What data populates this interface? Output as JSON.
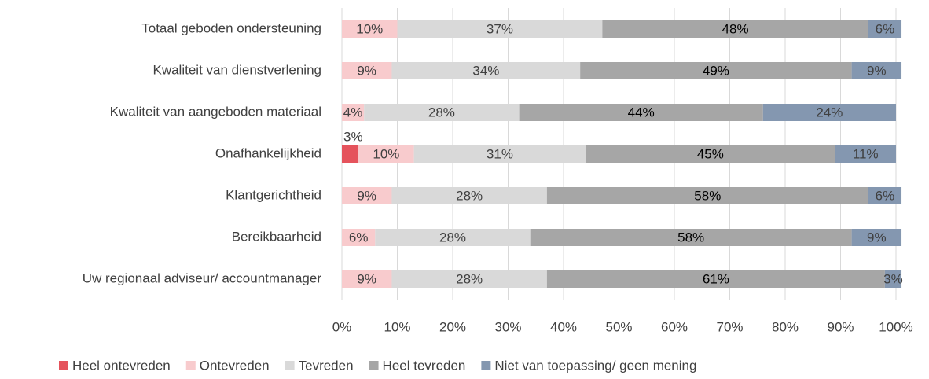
{
  "chart_data": {
    "type": "stacked_bar_horizontal",
    "categories": [
      "Totaal geboden ondersteuning",
      "Kwaliteit van dienstverlening",
      "Kwaliteit van aangeboden materiaal",
      "Onafhankelijkheid",
      "Klantgerichtheid",
      "Bereikbaarheid",
      "Uw regionaal adviseur/ accountmanager"
    ],
    "series": [
      {
        "name": "Heel ontevreden",
        "color": "#e5535c",
        "values": [
          null,
          null,
          null,
          3,
          null,
          null,
          null
        ],
        "value_labels": [
          null,
          null,
          null,
          "3%",
          null,
          null,
          null
        ]
      },
      {
        "name": "Ontevreden",
        "color": "#f8cbcd",
        "values": [
          10,
          9,
          4,
          10,
          9,
          6,
          9
        ],
        "value_labels": [
          "10%",
          "9%",
          "4%",
          "10%",
          "9%",
          "6%",
          "9%"
        ]
      },
      {
        "name": "Tevreden",
        "color": "#d9d9d9",
        "values": [
          37,
          34,
          28,
          31,
          28,
          28,
          28
        ],
        "value_labels": [
          "37%",
          "34%",
          "28%",
          "31%",
          "28%",
          "28%",
          "28%"
        ]
      },
      {
        "name": "Heel tevreden",
        "color": "#a6a6a6",
        "values": [
          48,
          49,
          44,
          45,
          58,
          58,
          61
        ],
        "value_labels": [
          "48%",
          "49%",
          "44%",
          "45%",
          "58%",
          "58%",
          "61%"
        ]
      },
      {
        "name": "Niet van toepassing/ geen mening",
        "color": "#8497b0",
        "values": [
          6,
          9,
          24,
          11,
          6,
          9,
          3
        ],
        "value_labels": [
          "6%",
          "9%",
          "24%",
          "11%",
          "6%",
          "9%",
          "3%"
        ]
      }
    ],
    "xlim": [
      0,
      100
    ],
    "xticks": [
      {
        "value": 0,
        "label": "0%"
      },
      {
        "value": 10,
        "label": "10%"
      },
      {
        "value": 20,
        "label": "20%"
      },
      {
        "value": 30,
        "label": "30%"
      },
      {
        "value": 40,
        "label": "40%"
      },
      {
        "value": 50,
        "label": "50%"
      },
      {
        "value": 60,
        "label": "60%"
      },
      {
        "value": 70,
        "label": "70%"
      },
      {
        "value": 80,
        "label": "80%"
      },
      {
        "value": 90,
        "label": "90%"
      },
      {
        "value": 100,
        "label": "100%"
      }
    ],
    "grid": true,
    "legend": "bottom"
  }
}
